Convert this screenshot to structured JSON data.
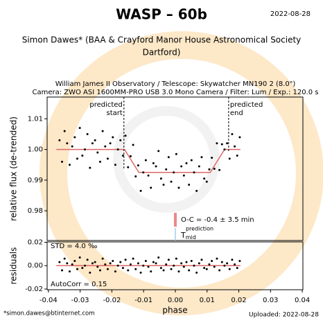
{
  "header": {
    "title": "WASP – 60b",
    "date": "2022-08-28",
    "observer": [
      "Simon Dawes* (BAA & Crayford Manor House Astronomical Society",
      "Dartford)"
    ],
    "details": [
      "William James II Observatory / Telescope: Skywatcher MN190 2 (8.0\")",
      "Camera: ZWO ASI 1600MM-PRO USB 3.0 Mono Camera / Filter: Lum / Exp.: 120.0 s"
    ]
  },
  "footer": {
    "email": "*simon.dawes@btinternet.com",
    "uploaded": "Uploaded: 2022-08-28"
  },
  "chart_data": [
    {
      "type": "scatter",
      "ylabel": "relative flux (de-trended)",
      "color": "#000000",
      "x": [
        -0.0365,
        -0.0357,
        -0.0349,
        -0.0341,
        -0.0333,
        -0.0325,
        -0.0317,
        -0.0309,
        -0.0301,
        -0.0293,
        -0.0285,
        -0.0277,
        -0.0269,
        -0.0261,
        -0.0253,
        -0.0245,
        -0.0237,
        -0.0229,
        -0.0221,
        -0.0213,
        -0.0205,
        -0.0197,
        -0.0189,
        -0.0181,
        -0.0173,
        -0.0165,
        -0.0157,
        -0.0149,
        -0.0141,
        -0.0133,
        -0.0125,
        -0.0117,
        -0.0109,
        -0.0101,
        -0.0093,
        -0.0085,
        -0.0077,
        -0.0069,
        -0.0061,
        -0.0053,
        -0.0045,
        -0.0037,
        -0.0029,
        -0.0021,
        -0.0013,
        -0.0005,
        0.0003,
        0.0011,
        0.0019,
        0.0027,
        0.0035,
        0.0043,
        0.0051,
        0.0059,
        0.0067,
        0.0075,
        0.0083,
        0.0091,
        0.0099,
        0.0107,
        0.0115,
        0.0123,
        0.0131,
        0.0139,
        0.0147,
        0.0155,
        0.0163,
        0.0171,
        0.0179,
        0.0187,
        0.0195,
        0.0203
      ],
      "values": [
        1.003,
        0.996,
        1.006,
        1.002,
        0.995,
        1.001,
        1.004,
        0.997,
        1.007,
        0.998,
        1.0,
        1.005,
        0.994,
        1.002,
        1.003,
        0.999,
        0.996,
        1.006,
        1.001,
        0.997,
        1.002,
        1.004,
        0.995,
        1.0,
        1.003,
        0.998,
        1.0045,
        0.9942,
        0.9978,
        1.0015,
        0.9912,
        0.9948,
        0.9865,
        0.9925,
        0.9965,
        0.9915,
        0.9875,
        0.9955,
        0.9945,
        0.9995,
        0.9905,
        0.9885,
        0.9935,
        0.9975,
        0.9895,
        0.9925,
        0.9985,
        0.9875,
        0.9945,
        0.9915,
        0.9955,
        0.9885,
        0.9965,
        0.9925,
        0.9865,
        0.9945,
        0.9975,
        0.9905,
        0.9895,
        0.9935,
        0.9973,
        0.9937,
        1.002,
        0.9933,
        1.0017,
        1.0,
        1.002,
        0.997,
        1.005,
        1.001,
        0.998,
        1.004
      ],
      "model": {
        "color": "#e06666",
        "x": [
          -0.0375,
          -0.016,
          -0.0115,
          0.011,
          0.0155,
          0.0205
        ],
        "values": [
          1.0,
          1.0,
          0.9925,
          0.9925,
          1.0,
          1.0
        ]
      },
      "predicted_start": {
        "x": -0.0162,
        "label": [
          "predicted",
          "start"
        ]
      },
      "predicted_end": {
        "x": 0.0168,
        "label": [
          "predicted",
          "end"
        ]
      },
      "oc": {
        "x": 0,
        "label": "O-C = -0.4 ± 3.5 min"
      },
      "tmid_label": {
        "base": "T",
        "sub": "mid",
        "sup": "prediction"
      },
      "xlim": [
        -0.0404,
        0.0402
      ],
      "ylim": [
        0.9703,
        1.0171
      ],
      "yticks": [
        0.98,
        0.99,
        {
          "value": 1.0,
          "label": "1.00"
        },
        1.01
      ]
    },
    {
      "type": "scatter",
      "ylabel": "residuals",
      "xlabel": "phase",
      "color": "#000000",
      "std_label": "STD = 4.0 ‰",
      "autocorr_label": "AutoCorr = 0.15",
      "x": [
        -0.0365,
        -0.0357,
        -0.0349,
        -0.0341,
        -0.0333,
        -0.0325,
        -0.0317,
        -0.0309,
        -0.0301,
        -0.0293,
        -0.0285,
        -0.0277,
        -0.0269,
        -0.0261,
        -0.0253,
        -0.0245,
        -0.0237,
        -0.0229,
        -0.0221,
        -0.0213,
        -0.0205,
        -0.0197,
        -0.0189,
        -0.0181,
        -0.0173,
        -0.0165,
        -0.0157,
        -0.0149,
        -0.0141,
        -0.0133,
        -0.0125,
        -0.0117,
        -0.0109,
        -0.0101,
        -0.0093,
        -0.0085,
        -0.0077,
        -0.0069,
        -0.0061,
        -0.0053,
        -0.0045,
        -0.0037,
        -0.0029,
        -0.0021,
        -0.0013,
        -0.0005,
        0.0003,
        0.0011,
        0.0019,
        0.0027,
        0.0035,
        0.0043,
        0.0051,
        0.0059,
        0.0067,
        0.0075,
        0.0083,
        0.0091,
        0.0099,
        0.0107,
        0.0115,
        0.0123,
        0.0131,
        0.0139,
        0.0147,
        0.0155,
        0.0163,
        0.0171,
        0.0179,
        0.0187,
        0.0195,
        0.0203
      ],
      "values": [
        0.003,
        -0.004,
        0.006,
        0.002,
        -0.005,
        0.001,
        0.004,
        -0.003,
        0.007,
        -0.002,
        0,
        0.005,
        -0.006,
        0.002,
        0.003,
        -0.001,
        -0.004,
        0.006,
        0.001,
        -0.003,
        0.002,
        0.004,
        -0.005,
        0,
        0.003,
        -0.002,
        0.005,
        -0.004,
        0.001,
        0.006,
        -0.003,
        0.002,
        -0.006,
        0,
        0.004,
        -0.001,
        -0.005,
        0.003,
        0.002,
        0.007,
        -0.002,
        -0.004,
        0.001,
        0.005,
        -0.003,
        0,
        0.006,
        -0.005,
        0.002,
        -0.001,
        0.003,
        -0.004,
        0.004,
        0,
        -0.006,
        0.002,
        0.005,
        -0.002,
        -0.003,
        0.001,
        0.004,
        -0.001,
        0.006,
        -0.004,
        0.003,
        0,
        0.002,
        -0.003,
        0.005,
        0.001,
        -0.002,
        0.004
      ],
      "model": {
        "color": "#e06666",
        "x": [
          -0.0375,
          0.0205
        ],
        "values": [
          0,
          0
        ]
      },
      "xlim": [
        -0.0404,
        0.0402
      ],
      "ylim": [
        -0.0206,
        0.0203
      ],
      "xticks": [
        -0.04,
        -0.03,
        -0.02,
        -0.01,
        {
          "value": 0,
          "label": "0.00"
        },
        0.01,
        0.02,
        0.03,
        0.04
      ],
      "yticks": [
        -0.02,
        {
          "value": 0,
          "label": "0.00"
        },
        0.02
      ]
    }
  ]
}
